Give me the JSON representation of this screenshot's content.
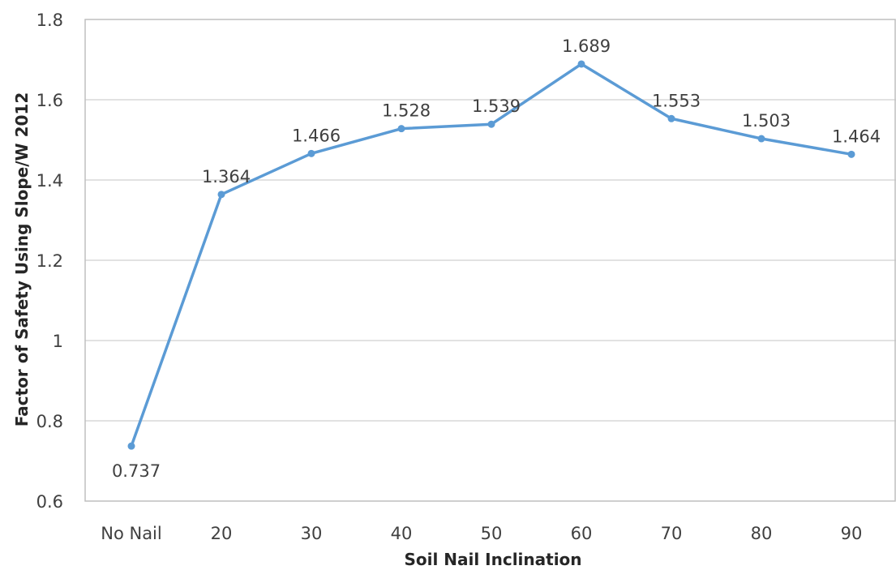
{
  "chart_data": {
    "type": "line",
    "categories": [
      "No Nail",
      "20",
      "30",
      "40",
      "50",
      "60",
      "70",
      "80",
      "90"
    ],
    "series": [
      {
        "values": [
          0.737,
          1.364,
          1.466,
          1.528,
          1.539,
          1.689,
          1.553,
          1.503,
          1.464
        ],
        "data_labels": [
          "0.737",
          "1.364",
          "1.466",
          "1.528",
          "1.539",
          "1.689",
          "1.553",
          "1.503",
          "1.464"
        ],
        "color": "#5b9bd5"
      }
    ],
    "xlabel": "Soil Nail Inclination",
    "ylabel": "Factor of Safety Using Slope/W 2012",
    "ylim": [
      0.6,
      1.8
    ],
    "yticks": [
      "0.6",
      "0.8",
      "1",
      "1.2",
      "1.4",
      "1.6",
      "1.8"
    ],
    "grid": true,
    "legend": "none"
  }
}
